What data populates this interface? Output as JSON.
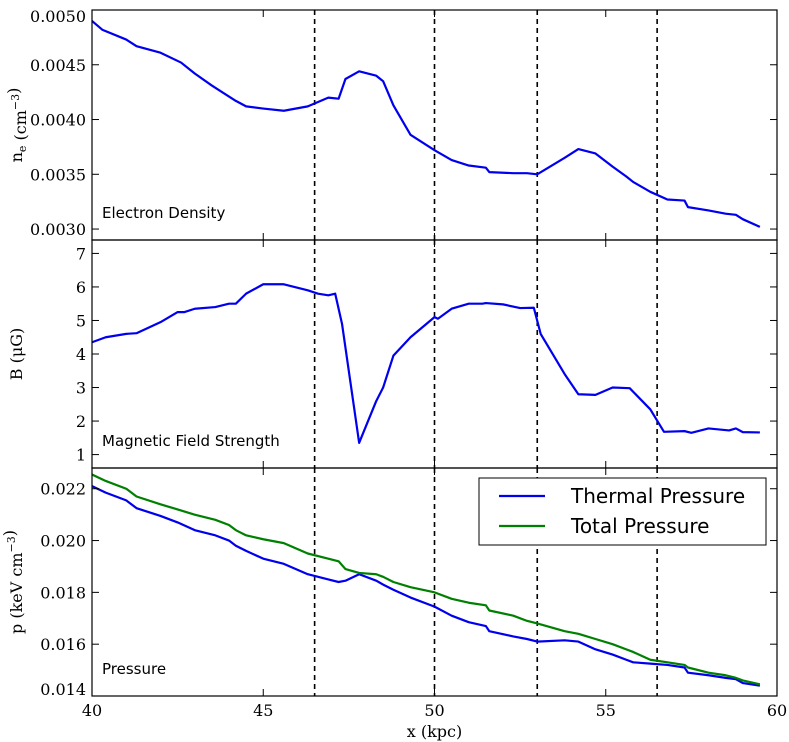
{
  "chart_data": {
    "type": "line",
    "xlabel": "x (kpc)",
    "xlim": [
      40,
      60
    ],
    "xticks": [
      40,
      45,
      50,
      55,
      60
    ],
    "vlines": [
      46.5,
      50,
      53,
      56.5
    ],
    "panels": [
      {
        "key": "density",
        "title": "Electron Density",
        "ylabel": "n_e (cm^-3)",
        "ylim": [
          0.0029,
          0.005
        ],
        "yticks": [
          0.003,
          0.0035,
          0.004,
          0.0045,
          0.005
        ],
        "ytick_labels": [
          "0.0030",
          "0.0035",
          "0.0040",
          "0.0045",
          "0.0050"
        ],
        "series": [
          {
            "name": "Electron Density",
            "color": "#0000ee",
            "x": [
              40,
              40.3,
              41,
              41.3,
              42,
              42.6,
              43,
              43.5,
              44,
              44.2,
              44.5,
              45,
              45.6,
              46.3,
              46.9,
              47.2,
              47.4,
              47.8,
              48.3,
              48.5,
              48.8,
              49.3,
              50,
              50.5,
              51,
              51.5,
              51.6,
              52.3,
              52.7,
              53,
              53.8,
              54.2,
              54.7,
              55.2,
              55.6,
              55.8,
              56.3,
              56.8,
              57.3,
              57.4,
              58,
              58.5,
              58.8,
              59,
              59.5
            ],
            "y": [
              0.0049,
              0.00482,
              0.00473,
              0.00467,
              0.00461,
              0.00452,
              0.00442,
              0.00431,
              0.00421,
              0.00417,
              0.00412,
              0.0041,
              0.00408,
              0.00412,
              0.0042,
              0.00419,
              0.00437,
              0.00444,
              0.0044,
              0.00435,
              0.00413,
              0.00386,
              0.00372,
              0.00363,
              0.00358,
              0.00356,
              0.00352,
              0.00351,
              0.00351,
              0.0035,
              0.00365,
              0.00373,
              0.00369,
              0.00357,
              0.00348,
              0.00343,
              0.00334,
              0.00327,
              0.00326,
              0.0032,
              0.00317,
              0.00314,
              0.00313,
              0.00309,
              0.00302
            ]
          }
        ]
      },
      {
        "key": "bfield",
        "title": "Magnetic Field Strength",
        "ylabel": "B (μG)",
        "ylim": [
          0.6,
          7.4
        ],
        "yticks": [
          1,
          2,
          3,
          4,
          5,
          6,
          7
        ],
        "ytick_labels": [
          "1",
          "2",
          "3",
          "4",
          "5",
          "6",
          "7"
        ],
        "series": [
          {
            "name": "Magnetic Field Strength",
            "color": "#0000ee",
            "x": [
              40,
              40.4,
              41,
              41.3,
              42,
              42.5,
              42.7,
              43,
              43.6,
              44,
              44.2,
              44.5,
              45,
              45.6,
              46.3,
              46.6,
              46.9,
              47.1,
              47.3,
              47.8,
              48.3,
              48.5,
              48.8,
              49.3,
              50,
              50.1,
              50.5,
              51,
              51.4,
              51.5,
              52,
              52.5,
              52.9,
              53.1,
              53.8,
              54.2,
              54.7,
              55.2,
              55.7,
              56.3,
              56.7,
              57.3,
              57.5,
              58,
              58.6,
              58.8,
              59,
              59.5
            ],
            "y": [
              4.35,
              4.5,
              4.6,
              4.62,
              4.95,
              5.25,
              5.25,
              5.35,
              5.4,
              5.5,
              5.5,
              5.8,
              6.08,
              6.08,
              5.9,
              5.8,
              5.75,
              5.8,
              4.9,
              1.35,
              2.6,
              3.0,
              3.95,
              4.5,
              5.1,
              5.05,
              5.35,
              5.5,
              5.5,
              5.52,
              5.48,
              5.37,
              5.38,
              4.6,
              3.4,
              2.8,
              2.78,
              3.0,
              2.98,
              2.35,
              1.68,
              1.7,
              1.65,
              1.78,
              1.72,
              1.78,
              1.67,
              1.66
            ]
          }
        ]
      },
      {
        "key": "pressure",
        "title": "Pressure",
        "ylabel": "p (keV cm^-3)",
        "ylim": [
          0.014,
          0.0228
        ],
        "yticks": [
          0.014,
          0.016,
          0.018,
          0.02,
          0.022
        ],
        "ytick_labels": [
          "0.014",
          "0.016",
          "0.018",
          "0.020",
          "0.022"
        ],
        "legend_position": "top-right",
        "series": [
          {
            "name": "Thermal Pressure",
            "color": "#0000ee",
            "x": [
              40,
              40.4,
              41,
              41.3,
              42,
              42.5,
              43,
              43.6,
              44,
              44.2,
              44.5,
              45,
              45.6,
              46.3,
              46.9,
              47.2,
              47.4,
              47.8,
              48.3,
              48.5,
              48.8,
              49.3,
              50,
              50.5,
              51,
              51.5,
              51.6,
              52.3,
              52.7,
              53,
              53.8,
              54.2,
              54.7,
              55.2,
              55.6,
              55.8,
              56.3,
              56.8,
              57.3,
              57.4,
              58,
              58.5,
              58.8,
              59,
              59.5
            ],
            "y": [
              0.0221,
              0.02185,
              0.02155,
              0.02125,
              0.02095,
              0.0207,
              0.0204,
              0.0202,
              0.02,
              0.0198,
              0.0196,
              0.0193,
              0.0191,
              0.0187,
              0.0185,
              0.0184,
              0.01845,
              0.0187,
              0.01845,
              0.0183,
              0.0181,
              0.0178,
              0.01745,
              0.0171,
              0.01685,
              0.0167,
              0.0165,
              0.0163,
              0.0162,
              0.0161,
              0.01615,
              0.0161,
              0.0158,
              0.0156,
              0.0154,
              0.0153,
              0.01525,
              0.0152,
              0.0151,
              0.0149,
              0.0148,
              0.0147,
              0.01465,
              0.0145,
              0.0144
            ]
          },
          {
            "name": "Total Pressure",
            "color": "#008000",
            "x": [
              40,
              40.4,
              41,
              41.3,
              42,
              42.5,
              43,
              43.6,
              44,
              44.2,
              44.5,
              45,
              45.6,
              46.3,
              46.9,
              47.2,
              47.4,
              47.8,
              48.3,
              48.5,
              48.8,
              49.3,
              50,
              50.5,
              51,
              51.5,
              51.6,
              52.3,
              52.7,
              53,
              53.8,
              54.2,
              54.7,
              55.2,
              55.6,
              55.8,
              56.3,
              56.8,
              57.3,
              57.4,
              58,
              58.5,
              58.8,
              59,
              59.5
            ],
            "y": [
              0.02255,
              0.0223,
              0.022,
              0.0217,
              0.0214,
              0.0212,
              0.021,
              0.0208,
              0.0206,
              0.0204,
              0.0202,
              0.02005,
              0.0199,
              0.0195,
              0.0193,
              0.0192,
              0.0189,
              0.01875,
              0.0187,
              0.0186,
              0.0184,
              0.0182,
              0.018,
              0.01775,
              0.0176,
              0.0175,
              0.0173,
              0.0171,
              0.0169,
              0.0168,
              0.0165,
              0.0164,
              0.0162,
              0.016,
              0.0158,
              0.0157,
              0.0154,
              0.0153,
              0.0152,
              0.0151,
              0.0149,
              0.0148,
              0.0147,
              0.0146,
              0.01445
            ]
          }
        ]
      }
    ]
  }
}
